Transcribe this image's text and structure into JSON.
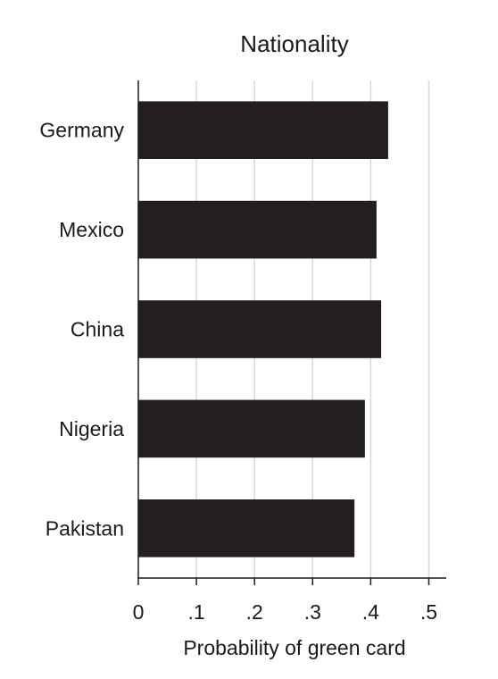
{
  "chart_data": {
    "type": "bar",
    "orientation": "horizontal",
    "title": "Nationality",
    "xlabel": "Probability of green card",
    "ylabel": "",
    "categories": [
      "Germany",
      "Mexico",
      "China",
      "Nigeria",
      "Pakistan"
    ],
    "values": [
      0.43,
      0.41,
      0.418,
      0.39,
      0.372
    ],
    "xlim": [
      0,
      0.53
    ],
    "xticks": [
      0,
      0.1,
      0.2,
      0.3,
      0.4,
      0.5
    ],
    "xtick_labels": [
      "0",
      ".1",
      ".2",
      ".3",
      ".4",
      ".5"
    ],
    "grid": "vertical",
    "bar_color": "#231f20",
    "grid_color": "#d9d9d9",
    "axis_color": "#1a1a1a"
  }
}
